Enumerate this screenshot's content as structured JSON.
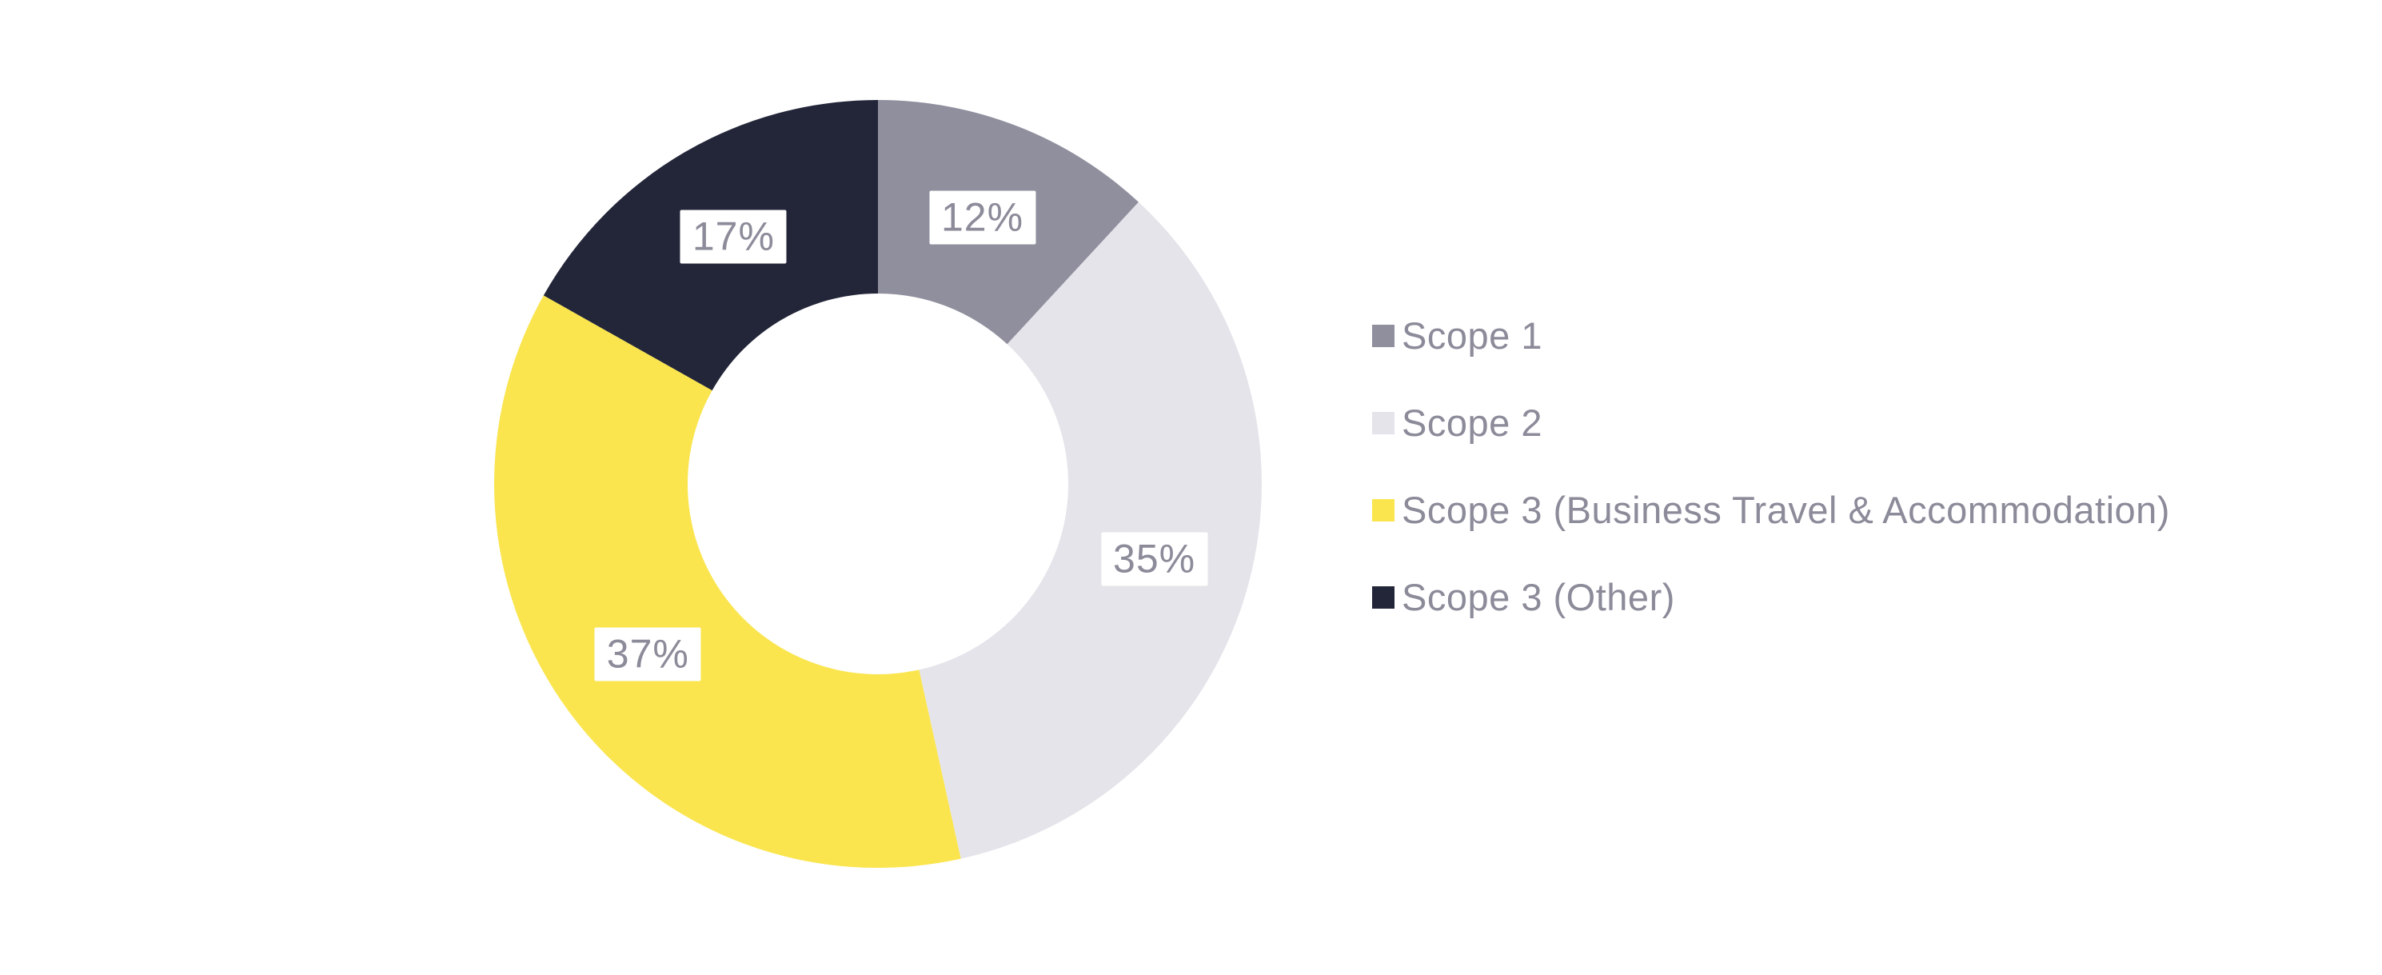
{
  "canvas": {
    "background": "#FFFFFF"
  },
  "chart_data": {
    "type": "pie",
    "subtype": "donut",
    "title": "",
    "categories": [
      "Scope 1",
      "Scope 2",
      "Scope 3 (Business Travel & Accommodation)",
      "Scope 3 (Other)"
    ],
    "values": [
      12,
      35,
      37,
      17
    ],
    "series": [
      {
        "label": "Scope 1",
        "value": 12,
        "display_label": "12%",
        "color": "#8F8F9E"
      },
      {
        "label": "Scope 2",
        "value": 35,
        "display_label": "35%",
        "color": "#E5E4EA"
      },
      {
        "label": "Scope 3 (Business Travel & Accommodation)",
        "value": 37,
        "display_label": "37%",
        "color": "#FAE54F"
      },
      {
        "label": "Scope 3 (Other)",
        "value": 17,
        "display_label": "17%",
        "color": "#232639"
      }
    ],
    "start_angle_deg": 0,
    "direction": "clockwise",
    "donut_hole_ratio": 0.5,
    "legend_position": "right",
    "label_style": {
      "text_color": "#8B8B9A",
      "background": "#FFFFFF"
    }
  },
  "legend": {
    "text_color": "#8B8B9A",
    "items": [
      {
        "label": "Scope 1",
        "color": "#8F8F9E"
      },
      {
        "label": "Scope 2",
        "color": "#E5E4EA"
      },
      {
        "label": "Scope 3 (Business Travel & Accommodation)",
        "color": "#FAE54F"
      },
      {
        "label": "Scope 3 (Other)",
        "color": "#232639"
      }
    ]
  }
}
